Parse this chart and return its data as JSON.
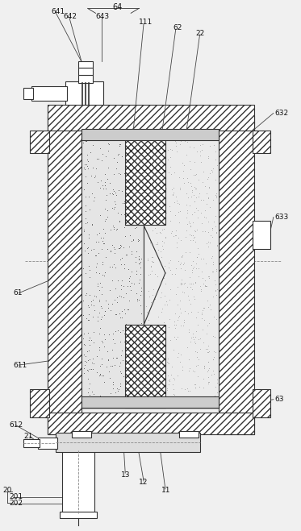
{
  "bg_color": "#f0f0f0",
  "line_color": "#333333",
  "figsize": [
    3.73,
    6.59
  ],
  "dpi": 100
}
